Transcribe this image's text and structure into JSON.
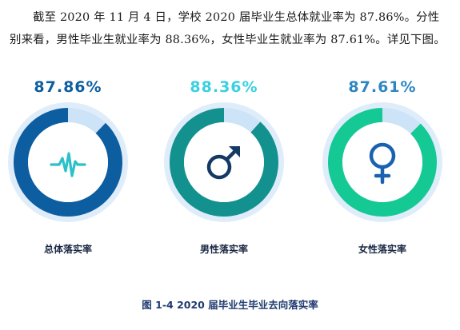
{
  "paragraph": {
    "text": "截至 2020 年 11 月 4 日，学校 2020 届毕业生总体就业率为 87.86%。分性别来看，男性毕业生就业率为 88.36%，女性毕业生就业率为 87.61%。详见下图。"
  },
  "charts": [
    {
      "value_label": "87.86%",
      "value": 87.86,
      "label": "总体落实率",
      "icon": "heartbeat-icon",
      "ring_color": "#0d5ea0",
      "gap_color": "#cde3f7",
      "halo_color": "#dfedfa",
      "value_color": "#0d5ea0",
      "icon_color": "#2bc1c9"
    },
    {
      "value_label": "88.36%",
      "value": 88.36,
      "label": "男性落实率",
      "icon": "male-icon",
      "ring_color": "#12918f",
      "gap_color": "#cde3f7",
      "halo_color": "#dfedfa",
      "value_color": "#39d0e2",
      "icon_color": "#143a63"
    },
    {
      "value_label": "87.61%",
      "value": 87.61,
      "label": "女性落实率",
      "icon": "female-icon",
      "ring_color": "#14c994",
      "gap_color": "#cde3f7",
      "halo_color": "#dfedfa",
      "value_color": "#2d86c2",
      "icon_color": "#1a62b0"
    }
  ],
  "caption": {
    "text": "图 1-4 2020 届毕业生毕业去向落实率"
  }
}
